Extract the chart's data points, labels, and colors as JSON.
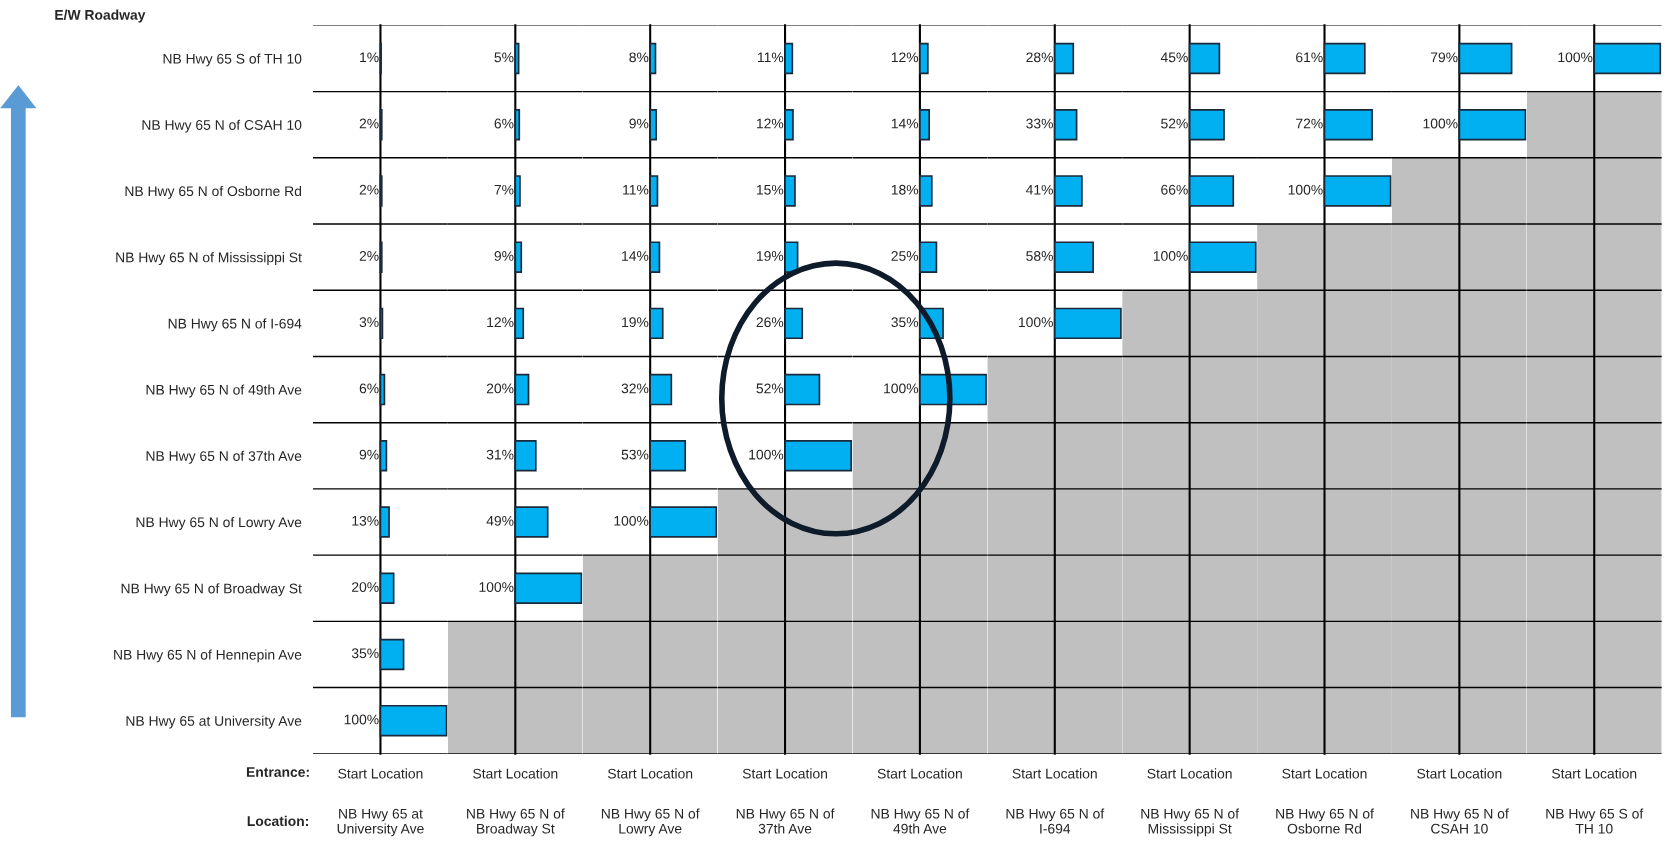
{
  "chart_data": [
    {
      "type": "bar",
      "orientation": "horizontal",
      "title": "NB Hwy 65 at University Ave",
      "xlabel": "Start Location",
      "tick_labels": "y",
      "grid": "y",
      "color": "#00b0f0",
      "annotations": [
        "E/W Roadway",
        "Entrance:",
        "Location:"
      ],
      "categories": [
        "NB Hwy 65 S of TH 10",
        "NB Hwy 65 N of CSAH 10",
        "NB Hwy 65 N of Osborne Rd",
        "NB Hwy 65 N of Mississippi St",
        "NB Hwy 65 N of I-694",
        "NB Hwy 65 N of 49th Ave",
        "NB Hwy 65 N of 37th Ave",
        "NB Hwy 65 N of Lowry Ave",
        "NB Hwy 65 N of Broadway St",
        "NB Hwy 65 N of Hennepin Ave",
        "NB Hwy 65 at University Ave"
      ],
      "values": [
        1,
        2,
        2,
        2,
        3,
        6,
        9,
        13,
        20,
        35,
        100
      ],
      "value_labels": [
        "1%",
        "2%",
        "2%",
        "2%",
        "3%",
        "6%",
        "9%",
        "13%",
        "20%",
        "35%",
        "100%"
      ]
    },
    {
      "type": "bar",
      "orientation": "horizontal",
      "title": "NB Hwy 65 N of Broadway St",
      "xlabel": "Start Location",
      "tick_labels": false,
      "grid": "y",
      "color": "#00b0f0",
      "categories": [
        "NB Hwy 65 S of TH 10",
        "NB Hwy 65 N of CSAH 10",
        "NB Hwy 65 N of Osborne Rd",
        "NB Hwy 65 N of Mississippi St",
        "NB Hwy 65 N of I-694",
        "NB Hwy 65 N of 49th Ave",
        "NB Hwy 65 N of 37th Ave",
        "NB Hwy 65 N of Lowry Ave",
        "NB Hwy 65 N of Broadway St",
        "NB Hwy 65 N of Hennepin Ave",
        "NB Hwy 65 at University Ave"
      ],
      "bands": [
        {
          "axis": "y",
          "from": "NB Hwy 65 N of Hennepin Ave",
          "to": "NB Hwy 65 at University Ave",
          "color": "#c0c0c0"
        }
      ],
      "values": [
        5,
        6,
        7,
        9,
        12,
        20,
        31,
        49,
        100,
        null,
        null
      ],
      "value_labels": [
        "5%",
        "6%",
        "7%",
        "9%",
        "12%",
        "20%",
        "31%",
        "49%",
        "100%",
        null,
        null
      ]
    },
    {
      "type": "bar",
      "orientation": "horizontal",
      "title": "NB Hwy 65 N of Lowry Ave",
      "xlabel": "Start Location",
      "tick_labels": false,
      "grid": "y",
      "color": "#00b0f0",
      "categories": [
        "NB Hwy 65 S of TH 10",
        "NB Hwy 65 N of CSAH 10",
        "NB Hwy 65 N of Osborne Rd",
        "NB Hwy 65 N of Mississippi St",
        "NB Hwy 65 N of I-694",
        "NB Hwy 65 N of 49th Ave",
        "NB Hwy 65 N of 37th Ave",
        "NB Hwy 65 N of Lowry Ave",
        "NB Hwy 65 N of Broadway St",
        "NB Hwy 65 N of Hennepin Ave",
        "NB Hwy 65 at University Ave"
      ],
      "bands": [
        {
          "axis": "y",
          "from": "NB Hwy 65 N of Broadway St",
          "to": "NB Hwy 65 at University Ave",
          "color": "#c0c0c0"
        }
      ],
      "values": [
        8,
        9,
        11,
        14,
        19,
        32,
        53,
        100,
        null,
        null,
        null
      ],
      "value_labels": [
        "8%",
        "9%",
        "11%",
        "14%",
        "19%",
        "32%",
        "53%",
        "100%",
        null,
        null,
        null
      ]
    },
    {
      "type": "bar",
      "orientation": "horizontal",
      "title": "NB Hwy 65 N of 37th Ave",
      "xlabel": "Start Location",
      "tick_labels": false,
      "grid": "y",
      "color": "#00b0f0",
      "categories": [
        "NB Hwy 65 S of TH 10",
        "NB Hwy 65 N of CSAH 10",
        "NB Hwy 65 N of Osborne Rd",
        "NB Hwy 65 N of Mississippi St",
        "NB Hwy 65 N of I-694",
        "NB Hwy 65 N of 49th Ave",
        "NB Hwy 65 N of 37th Ave",
        "NB Hwy 65 N of Lowry Ave",
        "NB Hwy 65 N of Broadway St",
        "NB Hwy 65 N of Hennepin Ave",
        "NB Hwy 65 at University Ave"
      ],
      "bands": [
        {
          "axis": "y",
          "from": "NB Hwy 65 N of Lowry Ave",
          "to": "NB Hwy 65 at University Ave",
          "color": "#c0c0c0"
        }
      ],
      "values": [
        11,
        12,
        15,
        19,
        26,
        52,
        100,
        null,
        null,
        null,
        null
      ],
      "value_labels": [
        "11%",
        "12%",
        "15%",
        "19%",
        "26%",
        "52%",
        "100%",
        null,
        null,
        null,
        null
      ]
    },
    {
      "type": "bar",
      "orientation": "horizontal",
      "title": "NB Hwy 65 N of 49th Ave",
      "xlabel": "Start Location",
      "tick_labels": false,
      "grid": "y",
      "color": "#00b0f0",
      "categories": [
        "NB Hwy 65 S of TH 10",
        "NB Hwy 65 N of CSAH 10",
        "NB Hwy 65 N of Osborne Rd",
        "NB Hwy 65 N of Mississippi St",
        "NB Hwy 65 N of I-694",
        "NB Hwy 65 N of 49th Ave",
        "NB Hwy 65 N of 37th Ave",
        "NB Hwy 65 N of Lowry Ave",
        "NB Hwy 65 N of Broadway St",
        "NB Hwy 65 N of Hennepin Ave",
        "NB Hwy 65 at University Ave"
      ],
      "bands": [
        {
          "axis": "y",
          "from": "NB Hwy 65 N of 37th Ave",
          "to": "NB Hwy 65 at University Ave",
          "color": "#c0c0c0"
        }
      ],
      "values": [
        12,
        14,
        18,
        25,
        35,
        100,
        null,
        null,
        null,
        null,
        null
      ],
      "value_labels": [
        "12%",
        "14%",
        "18%",
        "25%",
        "35%",
        "100%",
        null,
        null,
        null,
        null,
        null
      ]
    },
    {
      "type": "bar",
      "orientation": "horizontal",
      "title": "NB Hwy 65 N of I-694",
      "xlabel": "Start Location",
      "tick_labels": false,
      "grid": "y",
      "color": "#00b0f0",
      "categories": [
        "NB Hwy 65 S of TH 10",
        "NB Hwy 65 N of CSAH 10",
        "NB Hwy 65 N of Osborne Rd",
        "NB Hwy 65 N of Mississippi St",
        "NB Hwy 65 N of I-694",
        "NB Hwy 65 N of 49th Ave",
        "NB Hwy 65 N of 37th Ave",
        "NB Hwy 65 N of Lowry Ave",
        "NB Hwy 65 N of Broadway St",
        "NB Hwy 65 N of Hennepin Ave",
        "NB Hwy 65 at University Ave"
      ],
      "bands": [
        {
          "axis": "y",
          "from": "NB Hwy 65 N of 49th Ave",
          "to": "NB Hwy 65 at University Ave",
          "color": "#c0c0c0"
        }
      ],
      "values": [
        28,
        33,
        41,
        58,
        100,
        null,
        null,
        null,
        null,
        null,
        null
      ],
      "value_labels": [
        "28%",
        "33%",
        "41%",
        "58%",
        "100%",
        null,
        null,
        null,
        null,
        null,
        null
      ]
    },
    {
      "type": "bar",
      "orientation": "horizontal",
      "title": "NB Hwy 65 N of Mississippi St",
      "xlabel": "Start Location",
      "tick_labels": false,
      "grid": "y",
      "color": "#00b0f0",
      "categories": [
        "NB Hwy 65 S of TH 10",
        "NB Hwy 65 N of CSAH 10",
        "NB Hwy 65 N of Osborne Rd",
        "NB Hwy 65 N of Mississippi St",
        "NB Hwy 65 N of I-694",
        "NB Hwy 65 N of 49th Ave",
        "NB Hwy 65 N of 37th Ave",
        "NB Hwy 65 N of Lowry Ave",
        "NB Hwy 65 N of Broadway St",
        "NB Hwy 65 N of Hennepin Ave",
        "NB Hwy 65 at University Ave"
      ],
      "bands": [
        {
          "axis": "y",
          "from": "NB Hwy 65 N of I-694",
          "to": "NB Hwy 65 at University Ave",
          "color": "#c0c0c0"
        }
      ],
      "values": [
        45,
        52,
        66,
        100,
        null,
        null,
        null,
        null,
        null,
        null,
        null
      ],
      "value_labels": [
        "45%",
        "52%",
        "66%",
        "100%",
        null,
        null,
        null,
        null,
        null,
        null,
        null
      ]
    },
    {
      "type": "bar",
      "orientation": "horizontal",
      "title": "NB Hwy 65 N of Osborne Rd",
      "xlabel": "Start Location",
      "tick_labels": false,
      "grid": "y",
      "color": "#00b0f0",
      "categories": [
        "NB Hwy 65 S of TH 10",
        "NB Hwy 65 N of CSAH 10",
        "NB Hwy 65 N of Osborne Rd",
        "NB Hwy 65 N of Mississippi St",
        "NB Hwy 65 N of I-694",
        "NB Hwy 65 N of 49th Ave",
        "NB Hwy 65 N of 37th Ave",
        "NB Hwy 65 N of Lowry Ave",
        "NB Hwy 65 N of Broadway St",
        "NB Hwy 65 N of Hennepin Ave",
        "NB Hwy 65 at University Ave"
      ],
      "bands": [
        {
          "axis": "y",
          "from": "NB Hwy 65 N of Mississippi St",
          "to": "NB Hwy 65 at University Ave",
          "color": "#c0c0c0"
        }
      ],
      "values": [
        61,
        72,
        100,
        null,
        null,
        null,
        null,
        null,
        null,
        null,
        null
      ],
      "value_labels": [
        "61%",
        "72%",
        "100%",
        null,
        null,
        null,
        null,
        null,
        null,
        null,
        null
      ]
    },
    {
      "type": "bar",
      "orientation": "horizontal",
      "title": "NB Hwy 65 N of CSAH 10",
      "xlabel": "Start Location",
      "tick_labels": false,
      "grid": "y",
      "color": "#00b0f0",
      "categories": [
        "NB Hwy 65 S of TH 10",
        "NB Hwy 65 N of CSAH 10",
        "NB Hwy 65 N of Osborne Rd",
        "NB Hwy 65 N of Mississippi St",
        "NB Hwy 65 N of I-694",
        "NB Hwy 65 N of 49th Ave",
        "NB Hwy 65 N of 37th Ave",
        "NB Hwy 65 N of Lowry Ave",
        "NB Hwy 65 N of Broadway St",
        "NB Hwy 65 N of Hennepin Ave",
        "NB Hwy 65 at University Ave"
      ],
      "bands": [
        {
          "axis": "y",
          "from": "NB Hwy 65 N of Osborne Rd",
          "to": "NB Hwy 65 at University Ave",
          "color": "#c0c0c0"
        }
      ],
      "values": [
        79,
        100,
        null,
        null,
        null,
        null,
        null,
        null,
        null,
        null,
        null
      ],
      "value_labels": [
        "79%",
        "100%",
        null,
        null,
        null,
        null,
        null,
        null,
        null,
        null,
        null
      ]
    },
    {
      "type": "bar",
      "orientation": "horizontal",
      "title": "NB Hwy 65 S of TH 10",
      "xlabel": "Start Location",
      "tick_labels": false,
      "grid": "y",
      "color": "#00b0f0",
      "categories": [
        "NB Hwy 65 S of TH 10",
        "NB Hwy 65 N of CSAH 10",
        "NB Hwy 65 N of Osborne Rd",
        "NB Hwy 65 N of Mississippi St",
        "NB Hwy 65 N of I-694",
        "NB Hwy 65 N of 49th Ave",
        "NB Hwy 65 N of 37th Ave",
        "NB Hwy 65 N of Lowry Ave",
        "NB Hwy 65 N of Broadway St",
        "NB Hwy 65 N of Hennepin Ave",
        "NB Hwy 65 at University Ave"
      ],
      "bands": [
        {
          "axis": "y",
          "from": "NB Hwy 65 N of CSAH 10",
          "to": "NB Hwy 65 at University Ave",
          "color": "#c0c0c0"
        }
      ],
      "values": [
        100,
        null,
        null,
        null,
        null,
        null,
        null,
        null,
        null,
        null,
        null
      ],
      "value_labels": [
        "100%",
        null,
        null,
        null,
        null,
        null,
        null,
        null,
        null,
        null,
        null
      ]
    }
  ]
}
